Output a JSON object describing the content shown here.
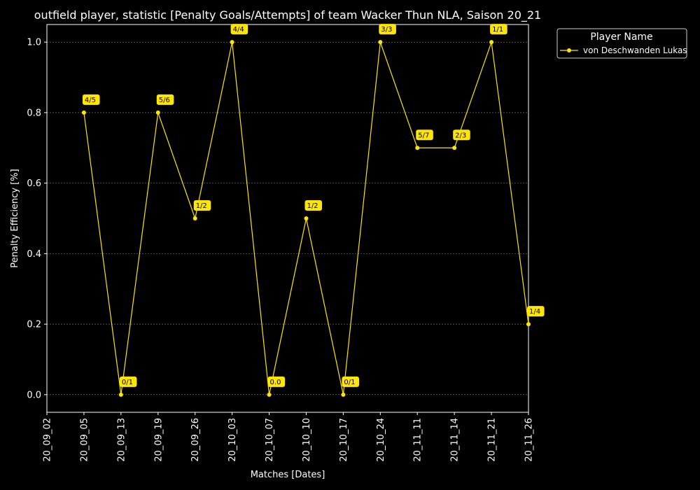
{
  "chart_data": {
    "type": "line",
    "title": "outfield player, statistic [Penalty Goals/Attempts] of team Wacker Thun NLA, Saison 20_21",
    "xlabel": "Matches [Dates]",
    "ylabel": "Penalty Efficiency [%]",
    "categories": [
      "20_09_02",
      "20_09_05",
      "20_09_13",
      "20_09_19",
      "20_09_26",
      "20_10_03",
      "20_10_07",
      "20_10_10",
      "20_10_17",
      "20_10_24",
      "20_11_11",
      "20_11_14",
      "20_11_21",
      "20_11_26"
    ],
    "ylim": [
      -0.05,
      1.05
    ],
    "yticks": [
      "0.0",
      "0.2",
      "0.4",
      "0.6",
      "0.8",
      "1.0"
    ],
    "grid": true,
    "legend_title": "Player Name",
    "legend_position": "outside-top-right",
    "series": [
      {
        "name": "von Deschwanden Lukas",
        "color": "#ffe600",
        "x": [
          "20_09_05",
          "20_09_13",
          "20_09_19",
          "20_09_26",
          "20_10_03",
          "20_10_07",
          "20_10_10",
          "20_10_17",
          "20_10_24",
          "20_11_11",
          "20_11_14",
          "20_11_21",
          "20_11_26"
        ],
        "values": [
          0.8,
          0.0,
          0.8,
          0.5,
          1.0,
          0.0,
          0.5,
          0.0,
          1.0,
          0.7,
          0.7,
          1.0,
          0.2
        ],
        "labels": [
          "4/5",
          "0/1",
          "5/6",
          "1/2",
          "4/4",
          "0.0",
          "1/2",
          "0/1",
          "3/3",
          "5/7",
          "2/3",
          "1/1",
          "1/4"
        ]
      }
    ]
  }
}
